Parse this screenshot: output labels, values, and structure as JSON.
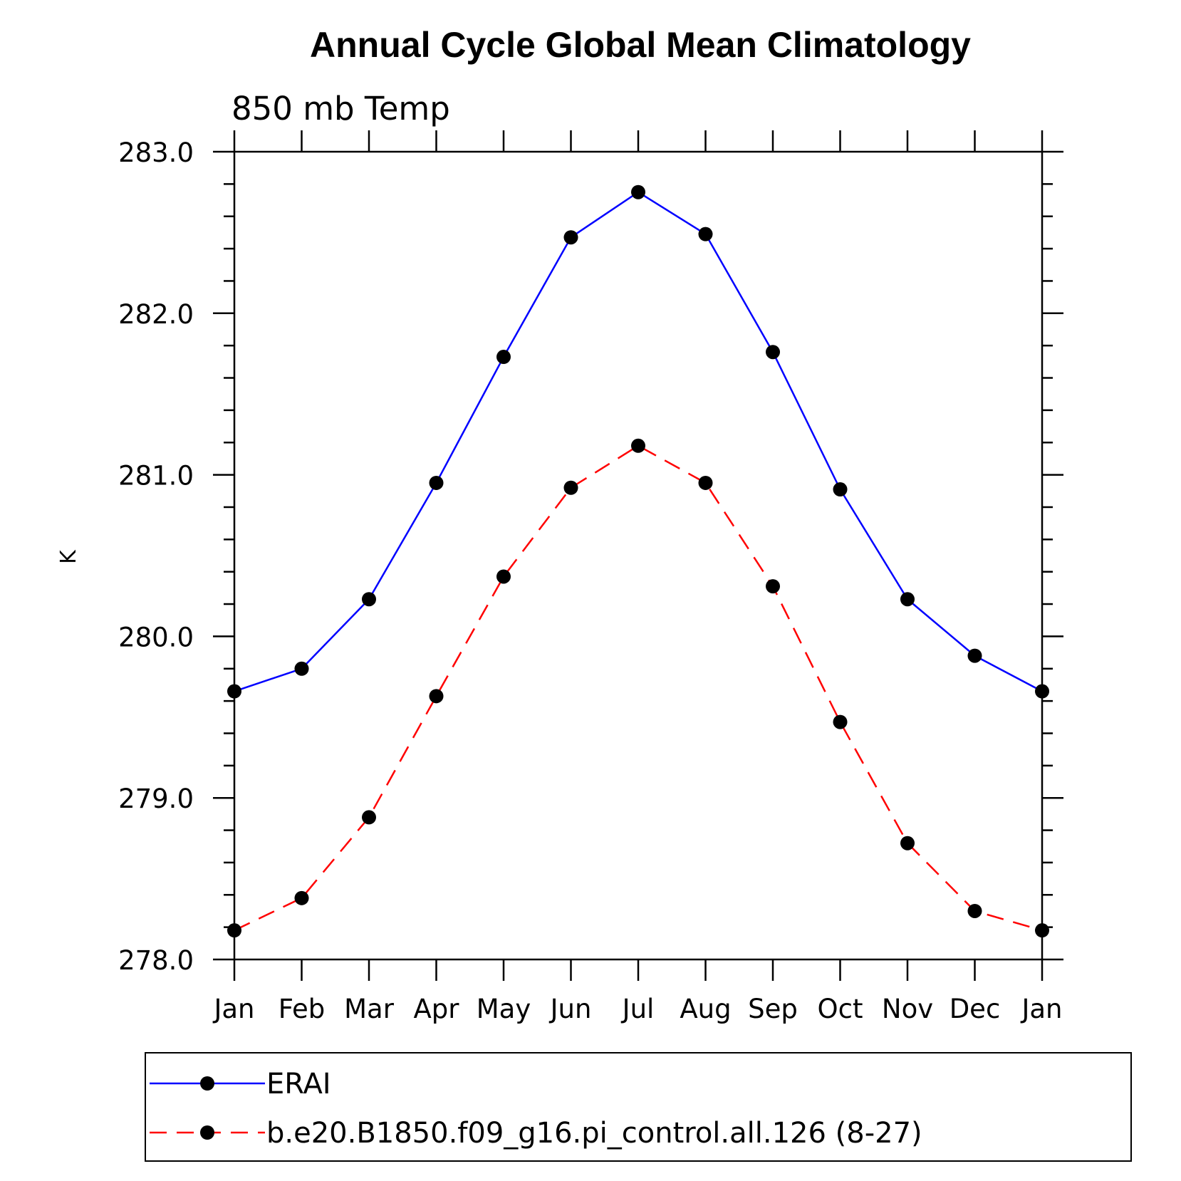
{
  "chart_data": {
    "type": "line",
    "title": "Annual Cycle Global Mean Climatology",
    "subtitle": "850 mb Temp",
    "xlabel": "",
    "ylabel": "K",
    "categories": [
      "Jan",
      "Feb",
      "Mar",
      "Apr",
      "May",
      "Jun",
      "Jul",
      "Aug",
      "Sep",
      "Oct",
      "Nov",
      "Dec",
      "Jan"
    ],
    "ylim": [
      278.0,
      283.0
    ],
    "yticks": [
      "278.0",
      "279.0",
      "280.0",
      "281.0",
      "282.0",
      "283.0"
    ],
    "ytick_values": [
      278.0,
      279.0,
      280.0,
      281.0,
      282.0,
      283.0
    ],
    "grid": false,
    "legend_position": "bottom",
    "series": [
      {
        "name": "ERAI",
        "color": "#0000ff",
        "line_style": "solid",
        "marker": "filled-circle",
        "values": [
          279.66,
          279.8,
          280.23,
          280.95,
          281.73,
          282.47,
          282.75,
          282.49,
          281.76,
          280.91,
          280.23,
          279.88,
          279.66
        ]
      },
      {
        "name": "b.e20.B1850.f09_g16.pi_control.all.126 (8-27)",
        "color": "#ff0000",
        "line_style": "dashed",
        "marker": "filled-circle",
        "values": [
          278.18,
          278.38,
          278.88,
          279.63,
          280.37,
          280.92,
          281.18,
          280.95,
          280.31,
          279.47,
          278.72,
          278.3,
          278.18
        ]
      }
    ]
  }
}
